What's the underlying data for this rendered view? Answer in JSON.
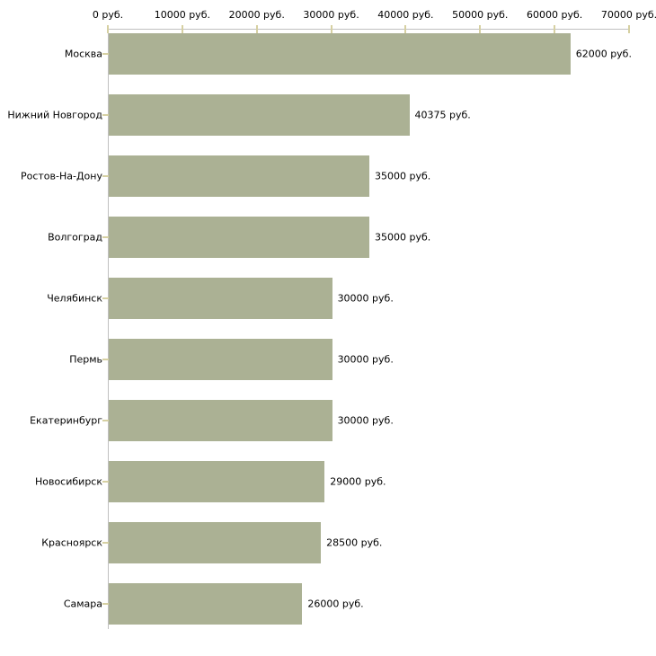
{
  "chart_data": {
    "type": "bar",
    "orientation": "horizontal",
    "title": "",
    "categories": [
      "Москва",
      "Нижний Новгород",
      "Ростов-На-Дону",
      "Волгоград",
      "Челябинск",
      "Пермь",
      "Екатеринбург",
      "Новосибирск",
      "Красноярск",
      "Самара"
    ],
    "values": [
      62000,
      40375,
      35000,
      35000,
      30000,
      30000,
      30000,
      29000,
      28500,
      26000
    ],
    "value_labels": [
      "62000 руб.",
      "40375 руб.",
      "35000 руб.",
      "35000 руб.",
      "30000 руб.",
      "30000 руб.",
      "30000 руб.",
      "29000 руб.",
      "28500 руб.",
      "26000 руб."
    ],
    "x_ticks": [
      0,
      10000,
      20000,
      30000,
      40000,
      50000,
      60000,
      70000
    ],
    "x_tick_labels": [
      "0 руб.",
      "10000 руб.",
      "20000 руб.",
      "30000 руб.",
      "40000 руб.",
      "50000 руб.",
      "60000 руб.",
      "70000 руб."
    ],
    "xlim": [
      0,
      70000
    ],
    "ylabel": "",
    "xlabel": "",
    "grid": false,
    "legend": null,
    "colors": {
      "bar": "#abb194",
      "axis_line": "#c0c0c0",
      "tick_mark": "#d6d0a2",
      "text": "#000000",
      "background": "#ffffff"
    }
  }
}
